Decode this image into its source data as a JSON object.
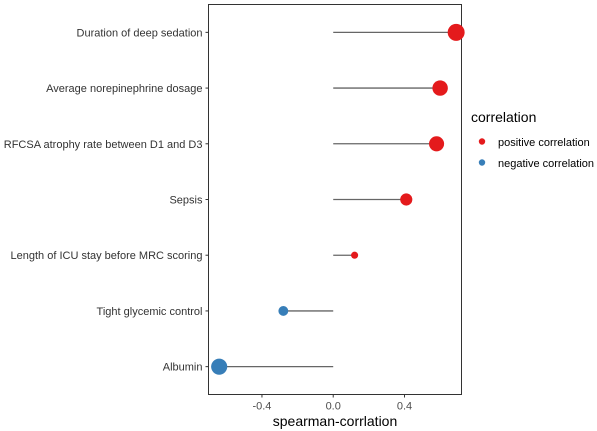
{
  "chart_data": {
    "type": "lollipop",
    "title": "",
    "xlabel": "spearman-corrlation",
    "ylabel": "",
    "xlim": [
      -0.7,
      0.72
    ],
    "xticks": [
      -0.4,
      0.0,
      0.4
    ],
    "xtick_labels": [
      "-0.4",
      "0.0",
      "0.4"
    ],
    "grid": false,
    "legend": {
      "title": "correlation",
      "position": "right",
      "entries": [
        {
          "label": "positive correlation",
          "color": "#e41a1c"
        },
        {
          "label": "negative correlation",
          "color": "#377eb8"
        }
      ]
    },
    "stem_color": "#666666",
    "points": [
      {
        "label": "Duration of deep sedation",
        "value": 0.69,
        "group": "positive correlation"
      },
      {
        "label": "Average norepinephrine dosage",
        "value": 0.6,
        "group": "positive correlation"
      },
      {
        "label": "RFCSA atrophy rate between D1 and D3",
        "value": 0.58,
        "group": "positive correlation"
      },
      {
        "label": "Sepsis",
        "value": 0.41,
        "group": "positive correlation"
      },
      {
        "label": "Length of ICU stay before MRC scoring",
        "value": 0.12,
        "group": "positive correlation"
      },
      {
        "label": "Tight glycemic control",
        "value": -0.28,
        "group": "negative correlation"
      },
      {
        "label": "Albumin",
        "value": -0.64,
        "group": "negative correlation"
      }
    ]
  }
}
